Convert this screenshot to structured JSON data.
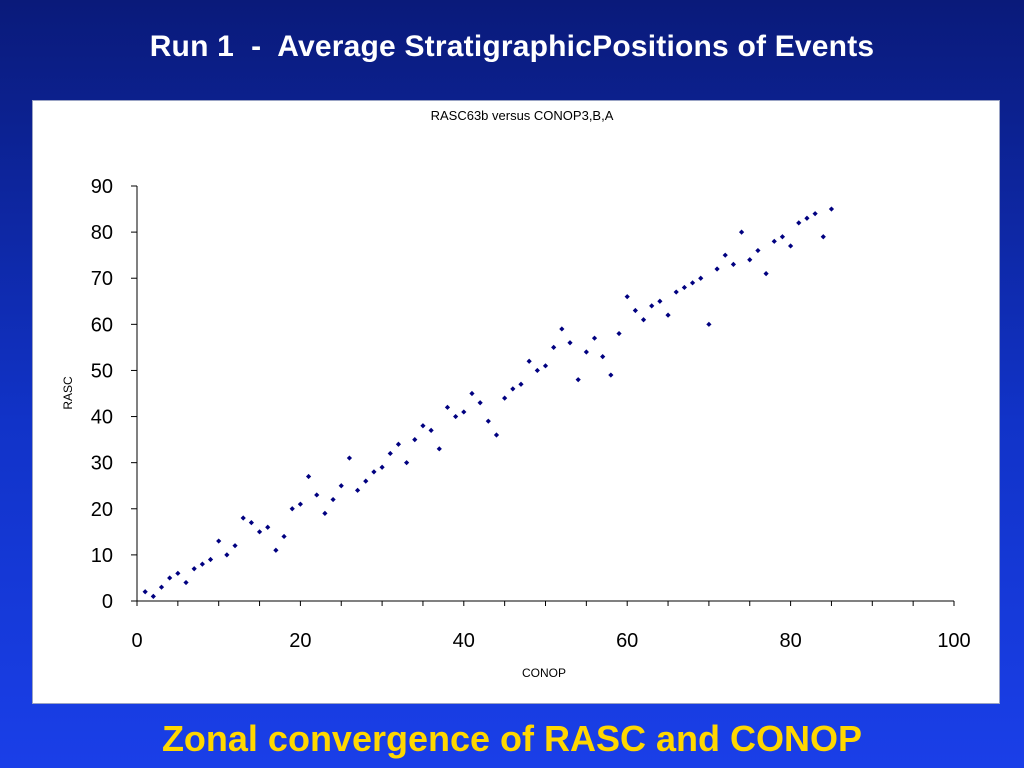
{
  "slide": {
    "title": "Run 1  -  Average StratigraphicPositions of Events",
    "caption": "Zonal convergence of RASC and CONOP"
  },
  "colors": {
    "marker": "#000080",
    "title_text": "#ffffff",
    "caption_text": "#ffd700"
  },
  "chart_data": {
    "type": "scatter",
    "title": "RASC63b versus CONOP3,B,A",
    "xlabel": "CONOP",
    "ylabel": "RASC",
    "xlim": [
      0,
      100
    ],
    "ylim": [
      0,
      90
    ],
    "xticks": [
      0,
      20,
      40,
      60,
      80,
      100
    ],
    "yticks": [
      0,
      10,
      20,
      30,
      40,
      50,
      60,
      70,
      80,
      90
    ],
    "grid": false,
    "points": [
      [
        1,
        2
      ],
      [
        2,
        1
      ],
      [
        3,
        3
      ],
      [
        4,
        5
      ],
      [
        5,
        6
      ],
      [
        6,
        4
      ],
      [
        7,
        7
      ],
      [
        8,
        8
      ],
      [
        9,
        9
      ],
      [
        10,
        13
      ],
      [
        11,
        10
      ],
      [
        12,
        12
      ],
      [
        13,
        18
      ],
      [
        14,
        17
      ],
      [
        15,
        15
      ],
      [
        16,
        16
      ],
      [
        17,
        11
      ],
      [
        18,
        14
      ],
      [
        19,
        20
      ],
      [
        20,
        21
      ],
      [
        21,
        27
      ],
      [
        22,
        23
      ],
      [
        23,
        19
      ],
      [
        24,
        22
      ],
      [
        25,
        25
      ],
      [
        26,
        31
      ],
      [
        27,
        24
      ],
      [
        28,
        26
      ],
      [
        29,
        28
      ],
      [
        30,
        29
      ],
      [
        31,
        32
      ],
      [
        32,
        34
      ],
      [
        33,
        30
      ],
      [
        34,
        35
      ],
      [
        35,
        38
      ],
      [
        36,
        37
      ],
      [
        37,
        33
      ],
      [
        38,
        42
      ],
      [
        39,
        40
      ],
      [
        40,
        41
      ],
      [
        41,
        45
      ],
      [
        42,
        43
      ],
      [
        43,
        39
      ],
      [
        44,
        36
      ],
      [
        45,
        44
      ],
      [
        46,
        46
      ],
      [
        47,
        47
      ],
      [
        48,
        52
      ],
      [
        49,
        50
      ],
      [
        50,
        51
      ],
      [
        51,
        55
      ],
      [
        52,
        59
      ],
      [
        53,
        56
      ],
      [
        54,
        48
      ],
      [
        55,
        54
      ],
      [
        56,
        57
      ],
      [
        57,
        53
      ],
      [
        58,
        49
      ],
      [
        59,
        58
      ],
      [
        60,
        66
      ],
      [
        61,
        63
      ],
      [
        62,
        61
      ],
      [
        63,
        64
      ],
      [
        64,
        65
      ],
      [
        65,
        62
      ],
      [
        66,
        67
      ],
      [
        67,
        68
      ],
      [
        68,
        69
      ],
      [
        69,
        70
      ],
      [
        70,
        60
      ],
      [
        71,
        72
      ],
      [
        72,
        75
      ],
      [
        73,
        73
      ],
      [
        74,
        80
      ],
      [
        75,
        74
      ],
      [
        76,
        76
      ],
      [
        77,
        71
      ],
      [
        78,
        78
      ],
      [
        79,
        79
      ],
      [
        80,
        77
      ],
      [
        81,
        82
      ],
      [
        82,
        83
      ],
      [
        83,
        84
      ],
      [
        84,
        79
      ],
      [
        85,
        85
      ]
    ]
  }
}
